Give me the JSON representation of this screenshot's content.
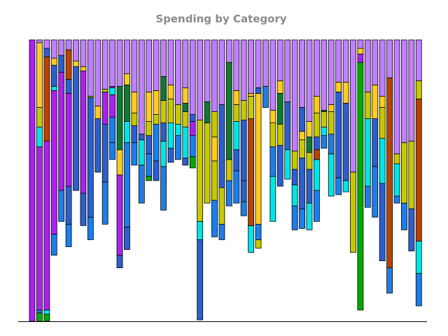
{
  "chart_data": {
    "type": "bar",
    "stacked": true,
    "normalized": true,
    "title": "Spending by Category",
    "xlabel": "",
    "ylabel": "",
    "ylim": [
      0,
      1
    ],
    "axes_visible": false,
    "grid": false,
    "legend": "none",
    "bar_count": 54,
    "colors": [
      "#ff0000",
      "#00aa00",
      "#1e7ee8",
      "#00e5e5",
      "#2d5fcc",
      "#c8c800",
      "#b84400",
      "#ffcc22",
      "#0e7a32",
      "#aa22ee",
      "#c080ff"
    ],
    "bars": [
      [
        [
          0,
          "#aa22ee"
        ]
      ],
      [
        [
          0,
          "#00aa00"
        ],
        [
          0.03,
          "#1e7ee8"
        ],
        [
          0.04,
          "#aa22ee"
        ],
        [
          0.62,
          "#00e5e5"
        ],
        [
          0.69,
          "#c8c800"
        ],
        [
          0.76,
          "#ffcc22"
        ],
        [
          0.99,
          "#c080ff"
        ]
      ],
      [
        [
          0,
          "#00aa00"
        ],
        [
          0.025,
          "#00e5e5"
        ],
        [
          0.04,
          "#aa22ee"
        ],
        [
          0.64,
          "#b84400"
        ],
        [
          0.94,
          "#2d5fcc"
        ],
        [
          0.97,
          "#c080ff"
        ]
      ],
      [
        [
          0.235,
          "#1e7ee8"
        ],
        [
          0.31,
          "#aa22ee"
        ],
        [
          0.82,
          "#00e5e5"
        ],
        [
          0.835,
          "#2d5fcc"
        ],
        [
          0.91,
          "#ffcc22"
        ],
        [
          0.935,
          "#c080ff"
        ]
      ],
      [
        [
          0.355,
          "#1e7ee8"
        ],
        [
          0.465,
          "#aa22ee"
        ],
        [
          0.885,
          "#2d5fcc"
        ],
        [
          0.945,
          "#c080ff"
        ]
      ],
      [
        [
          0.265,
          "#1e7ee8"
        ],
        [
          0.345,
          "#2d5fcc"
        ],
        [
          0.48,
          "#aa22ee"
        ],
        [
          0.81,
          "#2d5fcc"
        ],
        [
          0.86,
          "#b84400"
        ],
        [
          0.965,
          "#c080ff"
        ]
      ],
      [
        [
          0.465,
          "#2d5fcc"
        ],
        [
          0.905,
          "#ffcc22"
        ],
        [
          0.925,
          "#c080ff"
        ]
      ],
      [
        [
          0.34,
          "#2d5fcc"
        ],
        [
          0.455,
          "#aa22ee"
        ],
        [
          0.89,
          "#ffcc22"
        ],
        [
          0.905,
          "#c080ff"
        ]
      ],
      [
        [
          0.29,
          "#1e7ee8"
        ],
        [
          0.37,
          "#2d5fcc"
        ],
        [
          0.795,
          "#c8c800"
        ],
        [
          0.8,
          "#c080ff"
        ]
      ],
      [
        [
          0.53,
          "#2d5fcc"
        ],
        [
          0.72,
          "#ffcc22"
        ],
        [
          0.765,
          "#c080ff"
        ]
      ],
      [
        [
          0.345,
          "#1e7ee8"
        ],
        [
          0.495,
          "#2d5fcc"
        ],
        [
          0.7,
          "#aa22ee"
        ],
        [
          0.815,
          "#c8c800"
        ],
        [
          0.825,
          "#c080ff"
        ]
      ],
      [
        [
          0.575,
          "#1e7ee8"
        ],
        [
          0.635,
          "#1e7ee8"
        ],
        [
          0.725,
          "#aa22ee"
        ],
        [
          0.805,
          "#00e5e5"
        ],
        [
          0.83,
          "#aa22ee"
        ],
        [
          0.835,
          "#c080ff"
        ]
      ],
      [
        [
          0.19,
          "#2d5fcc"
        ],
        [
          0.235,
          "#aa22ee"
        ],
        [
          0.52,
          "#ffcc22"
        ],
        [
          0.61,
          "#0e7a32"
        ],
        [
          0.835,
          "#c080ff"
        ]
      ],
      [
        [
          0.255,
          "#2d5fcc"
        ],
        [
          0.335,
          "#1e7ee8"
        ],
        [
          0.635,
          "#00e5e5"
        ],
        [
          0.71,
          "#0e7a32"
        ],
        [
          0.84,
          "#ffcc22"
        ],
        [
          0.88,
          "#c080ff"
        ]
      ],
      [
        [
          0.555,
          "#1e7ee8"
        ],
        [
          0.635,
          "#2d5fcc"
        ],
        [
          0.695,
          "#c8c800"
        ],
        [
          0.74,
          "#ffcc22"
        ],
        [
          0.815,
          "#c080ff"
        ]
      ],
      [
        [
          0.42,
          "#1e7ee8"
        ],
        [
          0.555,
          "#00e5e5"
        ],
        [
          0.645,
          "#2d5fcc"
        ],
        [
          0.665,
          "#c080ff"
        ]
      ],
      [
        [
          0.5,
          "#00aa00"
        ],
        [
          0.515,
          "#1e7ee8"
        ],
        [
          0.595,
          "#2d5fcc"
        ],
        [
          0.66,
          "#c8c800"
        ],
        [
          0.71,
          "#ffcc22"
        ],
        [
          0.815,
          "#c080ff"
        ]
      ],
      [
        [
          0.5,
          "#2d5fcc"
        ],
        [
          0.57,
          "#1e7ee8"
        ],
        [
          0.7,
          "#c8c800"
        ],
        [
          0.735,
          "#ffcc22"
        ],
        [
          0.82,
          "#c080ff"
        ]
      ],
      [
        [
          0.395,
          "#1e7ee8"
        ],
        [
          0.55,
          "#00e5e5"
        ],
        [
          0.64,
          "#2d5fcc"
        ],
        [
          0.705,
          "#c8c800"
        ],
        [
          0.785,
          "#0e7a32"
        ],
        [
          0.87,
          "#c080ff"
        ]
      ],
      [
        [
          0.565,
          "#2d5fcc"
        ],
        [
          0.615,
          "#00e5e5"
        ],
        [
          0.705,
          "#c8c800"
        ],
        [
          0.79,
          "#ffcc22"
        ],
        [
          0.84,
          "#c080ff"
        ]
      ],
      [
        [
          0.575,
          "#1e7ee8"
        ],
        [
          0.66,
          "#00e5e5"
        ],
        [
          0.7,
          "#c8c800"
        ],
        [
          0.77,
          "#c080ff"
        ]
      ],
      [
        [
          0.555,
          "#2d5fcc"
        ],
        [
          0.58,
          "#00e5e5"
        ],
        [
          0.69,
          "#c8c800"
        ],
        [
          0.745,
          "#0e7a32"
        ],
        [
          0.775,
          "#ffcc22"
        ],
        [
          0.83,
          "#c080ff"
        ]
      ],
      [
        [
          0.545,
          "#00aa00"
        ],
        [
          0.585,
          "#1e7ee8"
        ],
        [
          0.66,
          "#aa22ee"
        ],
        [
          0.71,
          "#2d5fcc"
        ],
        [
          0.735,
          "#c080ff"
        ]
      ],
      [
        [
          0.005,
          "#2d5fcc"
        ],
        [
          0.29,
          "#00e5e5"
        ],
        [
          0.355,
          "#c8c800"
        ],
        [
          0.715,
          "#c080ff"
        ]
      ],
      [
        [
          0.42,
          "#c8c800"
        ],
        [
          0.705,
          "#0e7a32"
        ],
        [
          0.78,
          "#c080ff"
        ]
      ],
      [
        [
          0.3,
          "#1e7ee8"
        ],
        [
          0.43,
          "#c8c800"
        ],
        [
          0.57,
          "#ffcc22"
        ],
        [
          0.655,
          "#c8c800"
        ],
        [
          0.745,
          "#c080ff"
        ]
      ],
      [
        [
          0.29,
          "#1e7ee8"
        ],
        [
          0.345,
          "#c8c800"
        ],
        [
          0.475,
          "#2d5fcc"
        ],
        [
          0.77,
          "#c080ff"
        ]
      ],
      [
        [
          0.41,
          "#1e7ee8"
        ],
        [
          0.5,
          "#c8c800"
        ],
        [
          0.575,
          "#0e7a32"
        ],
        [
          0.92,
          "#c080ff"
        ]
      ],
      [
        [
          0.42,
          "#1e7ee8"
        ],
        [
          0.535,
          "#2d5fcc"
        ],
        [
          0.61,
          "#00e5e5"
        ],
        [
          0.71,
          "#c8c800"
        ],
        [
          0.77,
          "#ffcc22"
        ],
        [
          0.82,
          "#c080ff"
        ]
      ],
      [
        [
          0.375,
          "#1e7ee8"
        ],
        [
          0.425,
          "#2d5fcc"
        ],
        [
          0.5,
          "#2d5fcc"
        ],
        [
          0.715,
          "#c8c800"
        ],
        [
          0.785,
          "#c080ff"
        ]
      ],
      [
        [
          0.245,
          "#00e5e5"
        ],
        [
          0.34,
          "#b84400"
        ],
        [
          0.72,
          "#c8c800"
        ],
        [
          0.8,
          "#ffcc22"
        ],
        [
          0.81,
          "#c080ff"
        ]
      ],
      [
        [
          0.26,
          "#c8c800"
        ],
        [
          0.29,
          "#1e7ee8"
        ],
        [
          0.345,
          "#ffcc22"
        ],
        [
          0.81,
          "#2d5fcc"
        ],
        [
          0.83,
          "#c080ff"
        ]
      ],
      [
        [
          0.76,
          "#1e7ee8"
        ],
        [
          0.835,
          "#c080ff"
        ]
      ],
      [
        [
          0.355,
          "#00e5e5"
        ],
        [
          0.515,
          "#1e7ee8"
        ],
        [
          0.62,
          "#c8c800"
        ],
        [
          0.705,
          "#ffcc22"
        ],
        [
          0.75,
          "#c080ff"
        ]
      ],
      [
        [
          0.48,
          "#2d5fcc"
        ],
        [
          0.625,
          "#c8c800"
        ],
        [
          0.7,
          "#0e7a32"
        ],
        [
          0.81,
          "#ffcc22"
        ],
        [
          0.855,
          "#c080ff"
        ]
      ],
      [
        [
          0.505,
          "#00e5e5"
        ],
        [
          0.61,
          "#2d5fcc"
        ],
        [
          0.78,
          "#c080ff"
        ]
      ],
      [
        [
          0.325,
          "#1e7ee8"
        ],
        [
          0.41,
          "#00e5e5"
        ],
        [
          0.485,
          "#2d5fcc"
        ],
        [
          0.54,
          "#c8c800"
        ],
        [
          0.605,
          "#c080ff"
        ]
      ],
      [
        [
          0.33,
          "#1e7ee8"
        ],
        [
          0.4,
          "#2d5fcc"
        ],
        [
          0.58,
          "#c8c800"
        ],
        [
          0.645,
          "#ffcc22"
        ],
        [
          0.675,
          "#2d5fcc"
        ],
        [
          0.76,
          "#c080ff"
        ]
      ],
      [
        [
          0.325,
          "#00e5e5"
        ],
        [
          0.42,
          "#2d5fcc"
        ],
        [
          0.54,
          "#c8c800"
        ],
        [
          0.6,
          "#0e7a32"
        ],
        [
          0.655,
          "#ffcc22"
        ],
        [
          0.71,
          "#c080ff"
        ]
      ],
      [
        [
          0.355,
          "#1e7ee8"
        ],
        [
          0.465,
          "#00e5e5"
        ],
        [
          0.575,
          "#b84400"
        ],
        [
          0.61,
          "#2d5fcc"
        ],
        [
          0.655,
          "#c8c800"
        ],
        [
          0.74,
          "#ffcc22"
        ],
        [
          0.8,
          "#c080ff"
        ]
      ],
      [
        [
          0.615,
          "#1e7ee8"
        ],
        [
          0.66,
          "#00e5e5"
        ],
        [
          0.69,
          "#c8c800"
        ],
        [
          0.745,
          "#0e7a32"
        ],
        [
          0.75,
          "#c080ff"
        ]
      ],
      [
        [
          0.445,
          "#00e5e5"
        ],
        [
          0.595,
          "#1e7ee8"
        ],
        [
          0.665,
          "#c8c800"
        ],
        [
          0.745,
          "#ffcc22"
        ],
        [
          0.77,
          "#c080ff"
        ]
      ],
      [
        [
          0.45,
          "#1e7ee8"
        ],
        [
          0.51,
          "#2d5fcc"
        ],
        [
          0.815,
          "#ffcc22"
        ],
        [
          0.85,
          "#c080ff"
        ]
      ],
      [
        [
          0.46,
          "#00e5e5"
        ],
        [
          0.5,
          "#2d5fcc"
        ],
        [
          0.775,
          "#ffcc22"
        ],
        [
          0.85,
          "#c080ff"
        ]
      ],
      [
        [
          0.245,
          "#c8c800"
        ],
        [
          0.53,
          "#c080ff"
        ]
      ],
      [
        [
          0.04,
          "#00aa00"
        ],
        [
          0.92,
          "#aa22ee"
        ],
        [
          0.95,
          "#ffcc22"
        ],
        [
          0.97,
          "#c080ff"
        ]
      ],
      [
        [
          0.405,
          "#1e7ee8"
        ],
        [
          0.48,
          "#00e5e5"
        ],
        [
          0.72,
          "#c8c800"
        ],
        [
          0.815,
          "#c080ff"
        ]
      ],
      [
        [
          0.37,
          "#1e7ee8"
        ],
        [
          0.55,
          "#2d5fcc"
        ],
        [
          0.72,
          "#ffcc22"
        ],
        [
          0.84,
          "#c080ff"
        ]
      ],
      [
        [
          0.215,
          "#2d5fcc"
        ],
        [
          0.49,
          "#00e5e5"
        ],
        [
          0.65,
          "#c8c800"
        ],
        [
          0.76,
          "#ffcc22"
        ],
        [
          0.8,
          "#c080ff"
        ]
      ],
      [
        [
          0.1,
          "#1e7ee8"
        ],
        [
          0.19,
          "#b84400"
        ],
        [
          0.865,
          "#c080ff"
        ]
      ],
      [
        [
          0.42,
          "#1e7ee8"
        ],
        [
          0.445,
          "#00e5e5"
        ],
        [
          0.56,
          "#c8c800"
        ],
        [
          0.595,
          "#c080ff"
        ]
      ],
      [
        [
          0.325,
          "#1e7ee8"
        ],
        [
          0.42,
          "#c8c800"
        ],
        [
          0.635,
          "#c080ff"
        ]
      ],
      [
        [
          0.25,
          "#2d5fcc"
        ],
        [
          0.4,
          "#c8c800"
        ],
        [
          0.64,
          "#c080ff"
        ]
      ],
      [
        [
          0.055,
          "#1e7ee8"
        ],
        [
          0.17,
          "#00e5e5"
        ],
        [
          0.285,
          "#b84400"
        ],
        [
          0.79,
          "#c8c800"
        ],
        [
          0.855,
          "#c080ff"
        ]
      ]
    ]
  }
}
